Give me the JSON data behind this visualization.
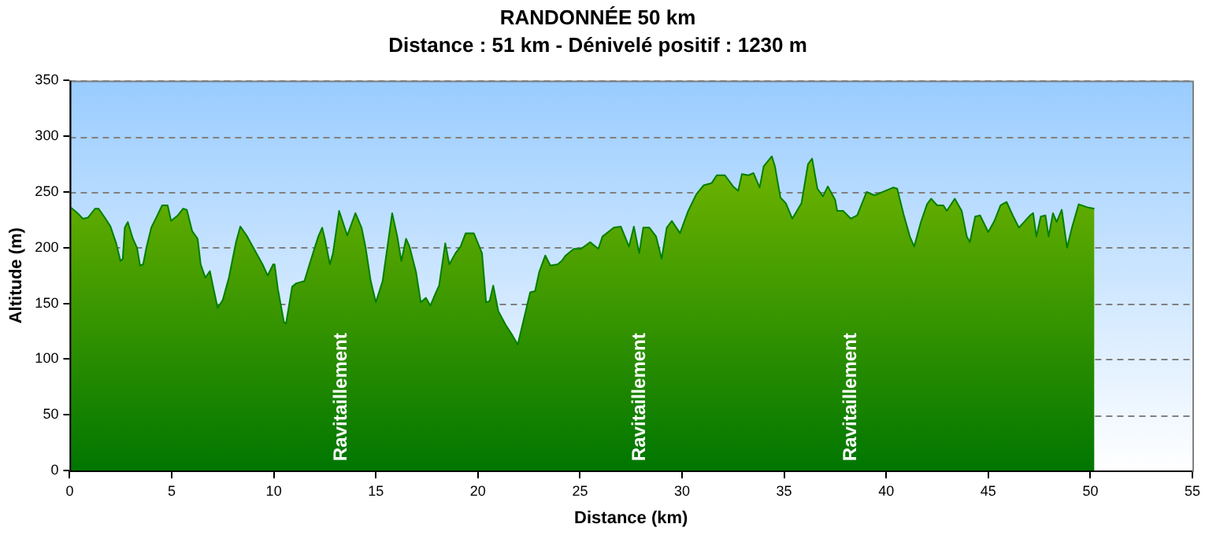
{
  "chart_data": {
    "type": "area",
    "title": "RANDONNÉE 50 km",
    "subtitle": "Distance : 51 km - Dénivelé positif : 1230 m",
    "xlabel": "Distance (km)",
    "ylabel": "Altitude (m)",
    "xlim": [
      0,
      55
    ],
    "xticks": [
      0,
      5,
      10,
      15,
      20,
      25,
      30,
      35,
      40,
      45,
      50,
      55
    ],
    "ylim": [
      0,
      350
    ],
    "yticks": [
      0,
      50,
      100,
      150,
      200,
      250,
      300,
      350
    ],
    "grid": "y",
    "legend": false,
    "annotations": [
      "Ravitaillement",
      "Ravitaillement",
      "Ravitaillement"
    ],
    "series": [
      {
        "color": "#8cc400",
        "x": [
          0,
          0.39,
          0.65,
          0.9,
          1.24,
          1.42,
          1.76,
          2.0,
          2.28,
          2.49,
          2.6,
          2.7,
          2.85,
          3.1,
          3.3,
          3.45,
          3.6,
          3.76,
          4.0,
          4.27,
          4.53,
          4.8,
          4.97,
          5.3,
          5.56,
          5.74,
          6.0,
          6.27,
          6.42,
          6.65,
          6.87,
          7.05,
          7.25,
          7.5,
          7.8,
          8.15,
          8.36,
          8.67,
          9.06,
          9.45,
          9.7,
          9.97,
          10.04,
          10.2,
          10.5,
          10.6,
          10.9,
          11.1,
          11.5,
          11.8,
          12.18,
          12.37,
          12.5,
          12.75,
          12.9,
          13.2,
          13.6,
          14.0,
          14.3,
          14.5,
          14.75,
          15.0,
          15.33,
          15.8,
          16.05,
          16.25,
          16.48,
          16.65,
          16.97,
          17.2,
          17.45,
          17.67,
          17.9,
          18.1,
          18.4,
          18.6,
          18.9,
          19.15,
          19.4,
          19.8,
          20.2,
          20.4,
          20.57,
          20.75,
          21.0,
          21.35,
          21.7,
          21.95,
          22.25,
          22.56,
          22.8,
          23.0,
          23.3,
          23.55,
          23.9,
          24.1,
          24.3,
          24.7,
          25.05,
          25.5,
          25.9,
          26.1,
          26.66,
          27.0,
          27.4,
          27.64,
          27.9,
          28.1,
          28.4,
          28.73,
          29.0,
          29.25,
          29.5,
          29.9,
          30.3,
          30.7,
          31.06,
          31.45,
          31.7,
          32.1,
          32.5,
          32.75,
          32.93,
          33.26,
          33.5,
          33.8,
          34.0,
          34.4,
          34.55,
          34.82,
          35.08,
          35.4,
          35.85,
          36.17,
          36.37,
          36.63,
          36.9,
          37.14,
          37.5,
          37.6,
          37.9,
          38.27,
          38.58,
          39.04,
          39.43,
          39.95,
          40.34,
          40.54,
          40.85,
          41.16,
          41.37,
          41.7,
          42.0,
          42.2,
          42.5,
          42.8,
          42.97,
          43.36,
          43.7,
          43.95,
          44.1,
          44.36,
          44.6,
          45.0,
          45.3,
          45.6,
          45.9,
          46.2,
          46.5,
          46.8,
          47.05,
          47.2,
          47.36,
          47.57,
          47.8,
          47.96,
          48.17,
          48.35,
          48.6,
          48.86,
          49.1,
          49.43,
          49.9,
          50.2
        ],
        "values": [
          237,
          231,
          226,
          227,
          235,
          235,
          226,
          219,
          204,
          188,
          190,
          218,
          223,
          208,
          200,
          184,
          185,
          200,
          218,
          228,
          238,
          238,
          224,
          229,
          235,
          234,
          215,
          208,
          185,
          173,
          179,
          163,
          146,
          153,
          173,
          205,
          219,
          211,
          198,
          185,
          175,
          185,
          185,
          163,
          133,
          132,
          165,
          168,
          170,
          188,
          210,
          218,
          208,
          185,
          195,
          233,
          211,
          231,
          218,
          200,
          170,
          151,
          170,
          231,
          210,
          188,
          208,
          201,
          178,
          151,
          155,
          148,
          158,
          166,
          204,
          185,
          195,
          201,
          213,
          213,
          195,
          151,
          152,
          166,
          143,
          131,
          121,
          113,
          136,
          160,
          161,
          178,
          193,
          184,
          185,
          188,
          193,
          199,
          199,
          205,
          199,
          210,
          218,
          219,
          201,
          219,
          195,
          218,
          218,
          210,
          190,
          218,
          224,
          213,
          233,
          248,
          256,
          258,
          265,
          265,
          255,
          251,
          266,
          265,
          267,
          254,
          273,
          282,
          273,
          245,
          240,
          226,
          240,
          275,
          280,
          253,
          246,
          255,
          243,
          233,
          233,
          226,
          229,
          250,
          247,
          251,
          254,
          253,
          230,
          210,
          201,
          223,
          239,
          244,
          238,
          238,
          233,
          244,
          233,
          210,
          205,
          228,
          229,
          214,
          224,
          238,
          241,
          229,
          218,
          224,
          229,
          231,
          210,
          228,
          229,
          210,
          231,
          223,
          234,
          200,
          218,
          239,
          236,
          235
        ]
      }
    ]
  }
}
